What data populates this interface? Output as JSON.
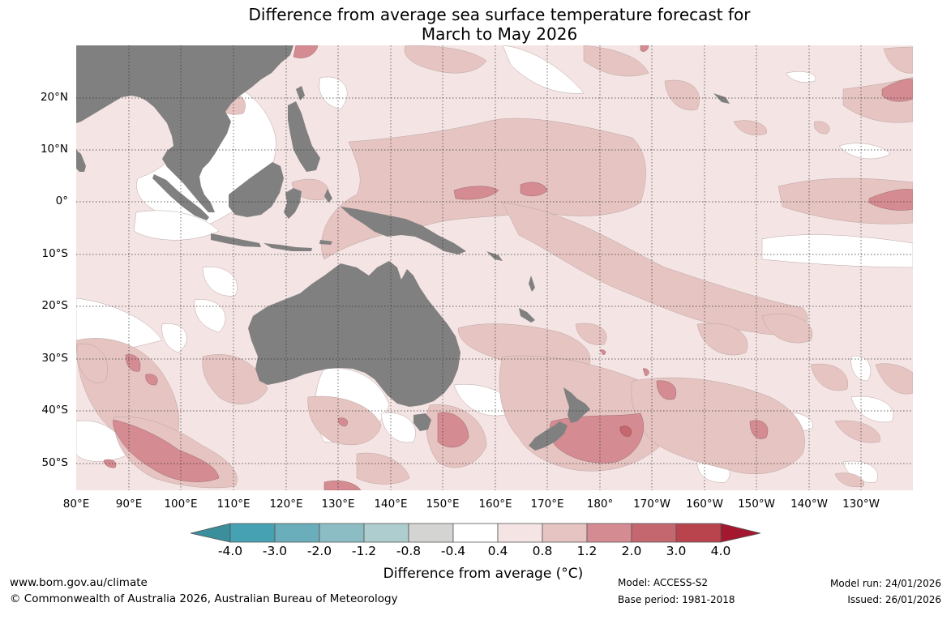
{
  "title": {
    "line1": "Difference from average sea surface temperature forecast for",
    "line2": "March to May 2026"
  },
  "map": {
    "lat_labels": [
      "20°N",
      "10°N",
      "0°",
      "10°S",
      "20°S",
      "30°S",
      "40°S",
      "50°S"
    ],
    "lon_labels": [
      "80°E",
      "90°E",
      "100°E",
      "110°E",
      "120°E",
      "130°E",
      "140°E",
      "150°E",
      "160°E",
      "170°E",
      "180°",
      "170°W",
      "160°W",
      "150°W",
      "140°W",
      "130°W"
    ],
    "ocean_base_color": "#f4e5e4",
    "land_color": "#808080"
  },
  "colorbar": {
    "ticks": [
      "-4.0",
      "-3.0",
      "-2.0",
      "-1.2",
      "-0.8",
      "-0.4",
      "0.4",
      "0.8",
      "1.2",
      "2.0",
      "3.0",
      "4.0"
    ],
    "colors": [
      "#3b8e9b",
      "#46a2b2",
      "#6aaebb",
      "#8cbdc4",
      "#aecdce",
      "#d4d5d3",
      "#ffffff",
      "#f4e5e4",
      "#e6c4c1",
      "#d48b91",
      "#c5676f",
      "#b9444e",
      "#a3182e"
    ],
    "label": "Difference from average (°C)"
  },
  "footer": {
    "website": "www.bom.gov.au/climate",
    "copyright": "© Commonwealth of Australia 2026, Australian Bureau of Meteorology",
    "model": "Model: ACCESS-S2",
    "base_period": "Base period: 1981-2018",
    "model_run": "Model run: 24/01/2026",
    "issued": "Issued: 26/01/2026"
  }
}
